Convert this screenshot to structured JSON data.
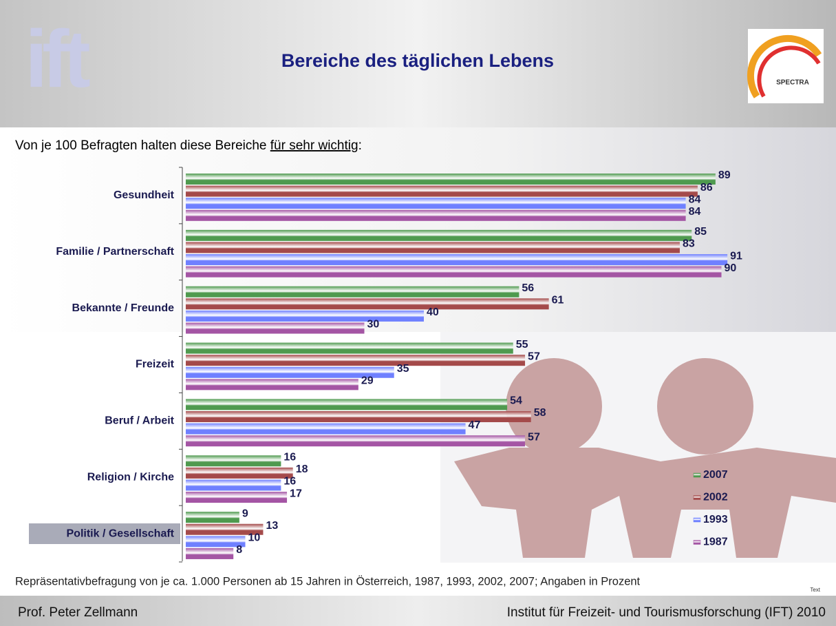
{
  "header": {
    "title": "Bereiche des täglichen Lebens",
    "logo_left": "ift",
    "logo_right": "SPECTRA"
  },
  "chart_data": {
    "type": "bar",
    "orientation": "horizontal",
    "subtitle": [
      "Von je 100 Befragten halten diese Bereiche ",
      "für sehr wichtig",
      ":"
    ],
    "categories": [
      "Gesundheit",
      "Familie / Partnerschaft",
      "Bekannte / Freunde",
      "Freizeit",
      "Beruf / Arbeit",
      "Religion / Kirche",
      "Politik / Gesellschaft"
    ],
    "series": [
      {
        "name": "2007",
        "color": "#4f9a4f",
        "values": [
          89,
          85,
          56,
          55,
          54,
          16,
          9
        ]
      },
      {
        "name": "2002",
        "color": "#a44a4a",
        "values": [
          86,
          83,
          61,
          57,
          58,
          18,
          13
        ]
      },
      {
        "name": "1993",
        "color": "#6f80ff",
        "values": [
          84,
          91,
          40,
          35,
          47,
          16,
          10
        ]
      },
      {
        "name": "1987",
        "color": "#a455a4",
        "values": [
          84,
          90,
          30,
          29,
          57,
          17,
          8
        ]
      }
    ],
    "xlim": [
      0,
      100
    ],
    "legend": "lower right",
    "note": "Repräsentativbefragung von je ca. 1.000 Personen ab 15 Jahren in Österreich, 1987, 1993, 2002, 2007; Angaben in Prozent",
    "corner_text": "Text"
  },
  "footer": {
    "left": "Prof. Peter Zellmann",
    "right": "Institut für Freizeit- und Tourismusforschung (IFT) 2010"
  }
}
